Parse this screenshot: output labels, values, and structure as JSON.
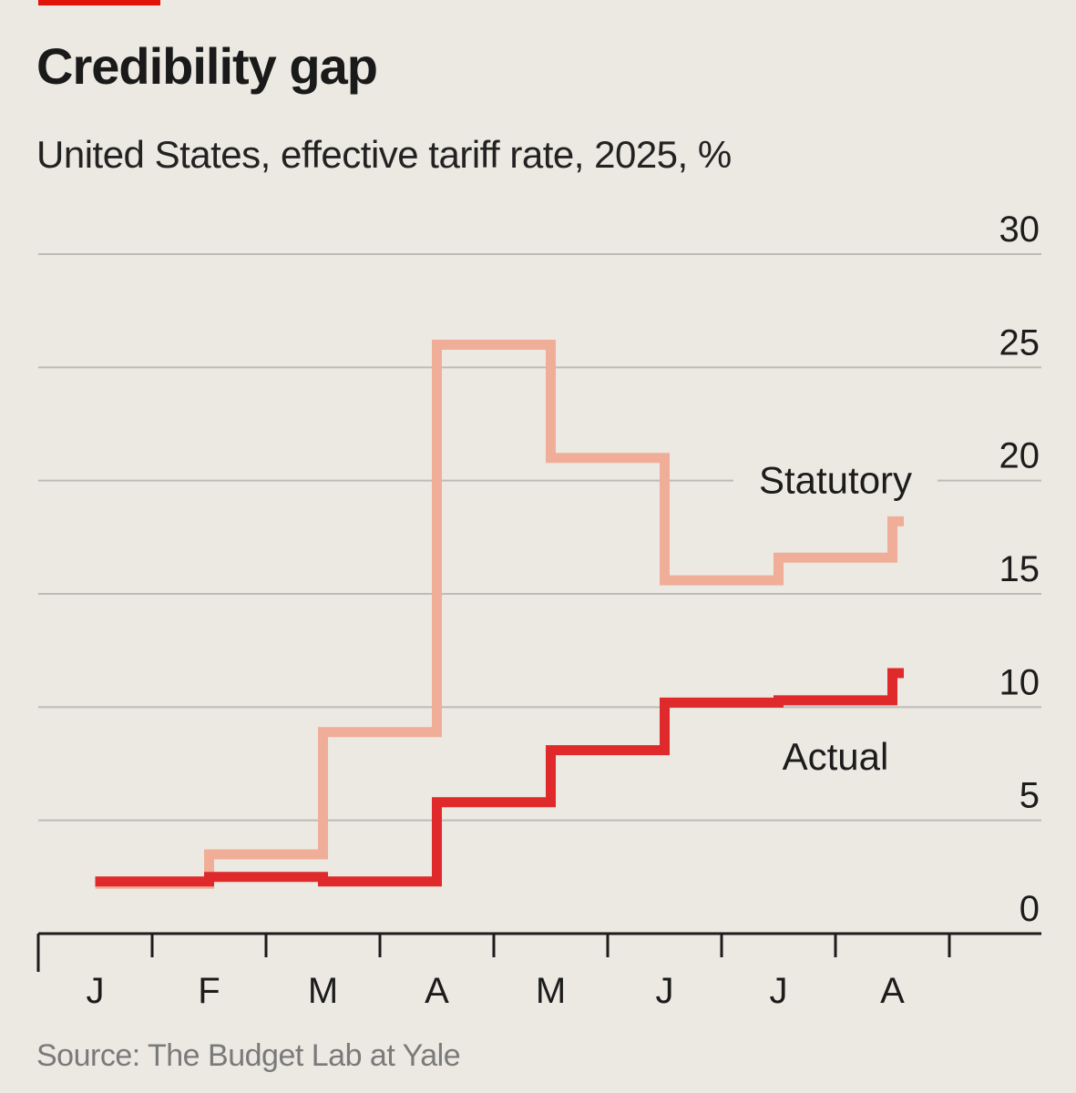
{
  "header": {
    "title": "Credibility gap",
    "subtitle": "United States, effective tariff rate, 2025, %"
  },
  "footer": {
    "source": "Source: The Budget Lab at Yale"
  },
  "colors": {
    "accent": "#e3120b",
    "statutory": "#f0ae98",
    "actual": "#e0292b",
    "grid": "#bdbbb5",
    "axis": "#1c1c1c",
    "background": "#ebe9e1"
  },
  "chart_data": {
    "type": "line",
    "step": true,
    "title": "Credibility gap",
    "subtitle": "United States, effective tariff rate, 2025, %",
    "xlabel": "",
    "ylabel": "%",
    "ylim": [
      0,
      30
    ],
    "yticks": [
      0,
      5,
      10,
      15,
      20,
      25,
      30
    ],
    "month_labels": [
      "J",
      "F",
      "M",
      "A",
      "M",
      "J",
      "J",
      "A"
    ],
    "xlim_months": [
      0,
      8
    ],
    "grid": true,
    "series": [
      {
        "name": "Statutory",
        "points": [
          [
            0.5,
            2.2
          ],
          [
            1.5,
            2.2
          ],
          [
            1.5,
            3.5
          ],
          [
            2.5,
            3.5
          ],
          [
            2.5,
            8.9
          ],
          [
            3.5,
            8.9
          ],
          [
            3.5,
            26.0
          ],
          [
            4.5,
            26.0
          ],
          [
            4.5,
            21.0
          ],
          [
            5.5,
            21.0
          ],
          [
            5.5,
            15.6
          ],
          [
            6.5,
            15.6
          ],
          [
            6.5,
            16.6
          ],
          [
            7.5,
            16.6
          ],
          [
            7.5,
            18.2
          ],
          [
            7.6,
            18.2
          ]
        ]
      },
      {
        "name": "Actual",
        "points": [
          [
            0.5,
            2.3
          ],
          [
            1.5,
            2.3
          ],
          [
            1.5,
            2.5
          ],
          [
            2.5,
            2.5
          ],
          [
            2.5,
            2.3
          ],
          [
            3.5,
            2.3
          ],
          [
            3.5,
            5.8
          ],
          [
            4.5,
            5.8
          ],
          [
            4.5,
            8.1
          ],
          [
            5.5,
            8.1
          ],
          [
            5.5,
            10.2
          ],
          [
            6.5,
            10.2
          ],
          [
            6.5,
            10.3
          ],
          [
            7.5,
            10.3
          ],
          [
            7.5,
            11.5
          ],
          [
            7.6,
            11.5
          ]
        ]
      }
    ],
    "labels": [
      {
        "series": "Statutory",
        "text": "Statutory",
        "at": [
          7.0,
          20.0
        ]
      },
      {
        "series": "Actual",
        "text": "Actual",
        "at": [
          7.0,
          7.8
        ]
      }
    ]
  }
}
